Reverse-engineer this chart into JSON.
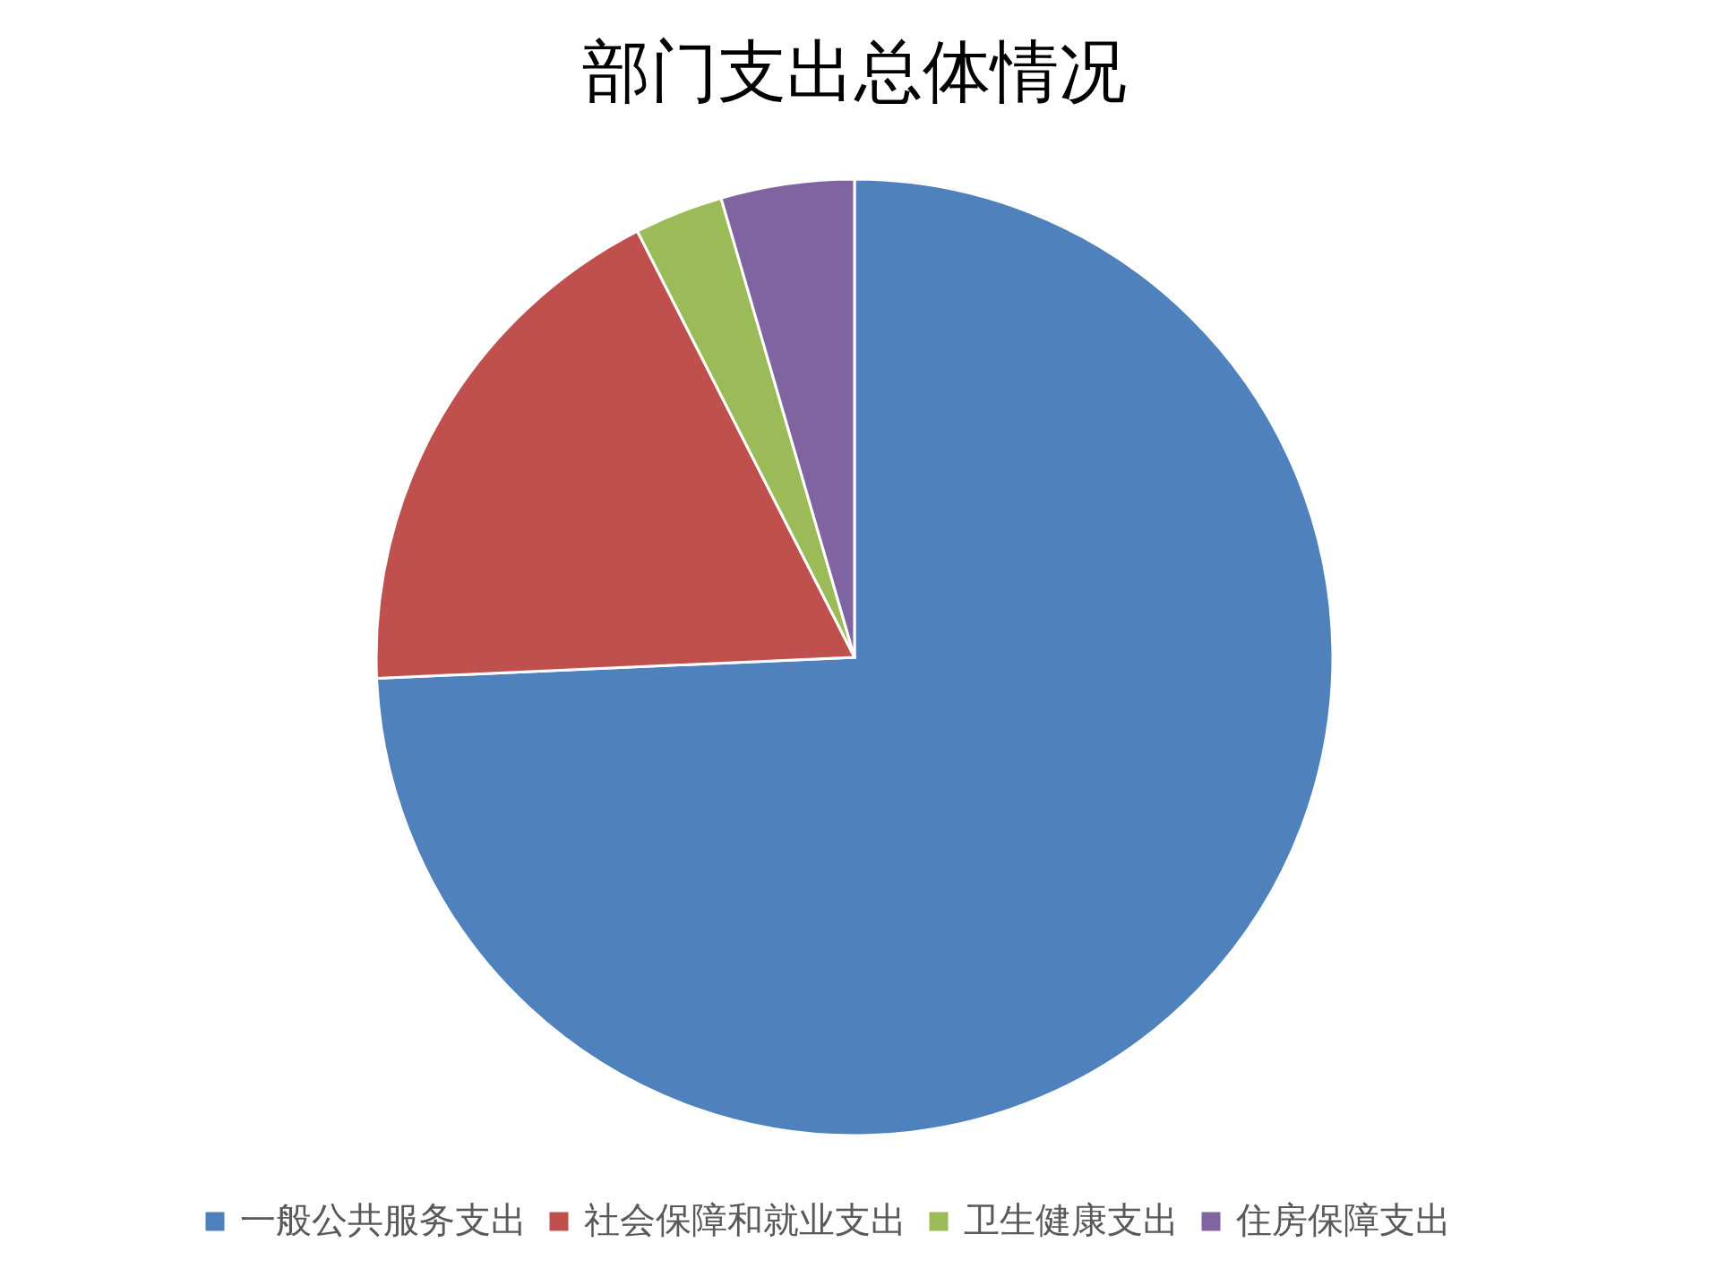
{
  "chart_data": {
    "type": "pie",
    "title": "部门支出总体情况",
    "categories": [
      "一般公共服务支出",
      "社会保障和就业支出",
      "卫生健康支出",
      "住房保障支出"
    ],
    "values": [
      74.3,
      18.2,
      3.0,
      4.5
    ],
    "colors": [
      "#4f81bd",
      "#c0504d",
      "#9bbb59",
      "#8064a2"
    ],
    "legend": "bottom"
  }
}
